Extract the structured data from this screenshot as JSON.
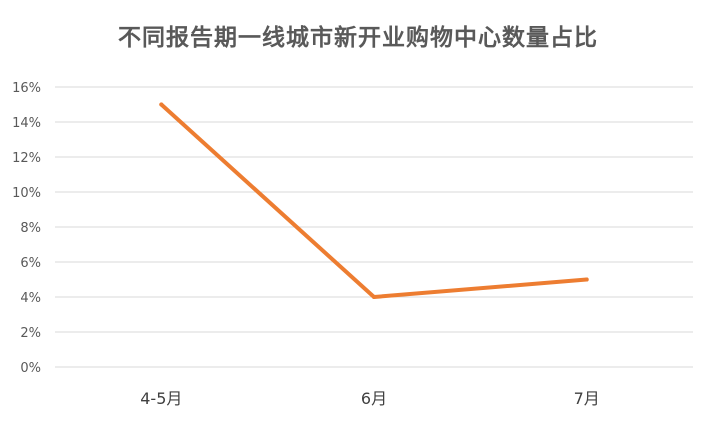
{
  "chart_data": {
    "type": "line",
    "title": "不同报告期一线城市新开业购物中心数量占比",
    "categories": [
      "4-5月",
      "6月",
      "7月"
    ],
    "series": [
      {
        "values": [
          15,
          4,
          5
        ]
      }
    ],
    "ylim": [
      0,
      16
    ],
    "yticks": [
      0,
      2,
      4,
      6,
      8,
      10,
      12,
      14,
      16
    ],
    "ytick_labels": [
      "0%",
      "2%",
      "4%",
      "6%",
      "8%",
      "10%",
      "12%",
      "14%",
      "16%"
    ],
    "xlabel": "",
    "ylabel": "",
    "grid": true,
    "legend": "none",
    "colors": {
      "line": "#ED7D31",
      "grid": "#D9D9D9",
      "axis_text": "#595959",
      "title": "#595959"
    }
  }
}
